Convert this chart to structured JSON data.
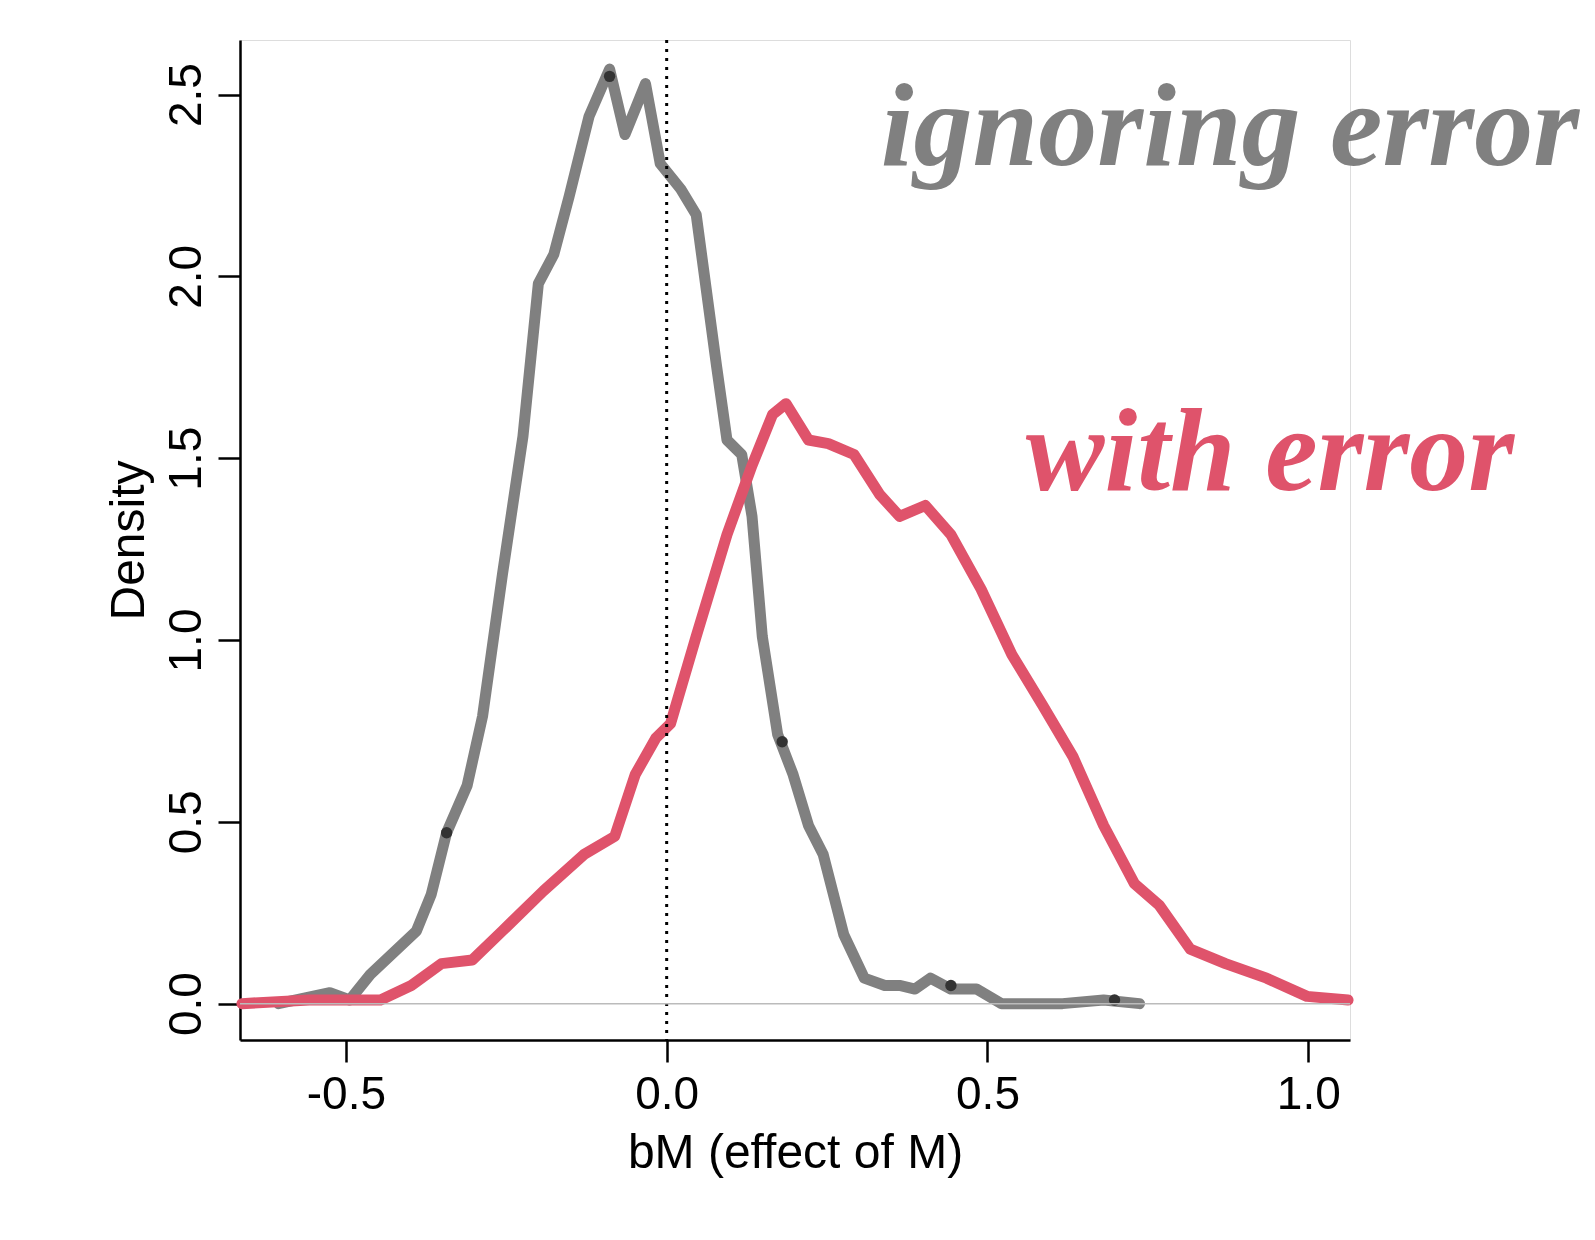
{
  "chart_data": {
    "type": "line",
    "xlabel": "bM (effect of M)",
    "ylabel": "Density",
    "xlim": [
      -0.665,
      1.065
    ],
    "ylim": [
      -0.1,
      2.65
    ],
    "xticks": [
      {
        "value": -0.5,
        "label": "-0.5"
      },
      {
        "value": 0,
        "label": "0.0"
      },
      {
        "value": 0.5,
        "label": "0.5"
      },
      {
        "value": 1,
        "label": "1.0"
      }
    ],
    "yticks": [
      {
        "value": 0,
        "label": "0.0"
      },
      {
        "value": 0.5,
        "label": "0.5"
      },
      {
        "value": 1,
        "label": "1.0"
      },
      {
        "value": 1.5,
        "label": "1.5"
      },
      {
        "value": 2,
        "label": "2.0"
      },
      {
        "value": 2.5,
        "label": "2.5"
      }
    ],
    "grid": false,
    "line_style": "solid",
    "ref_lines": [
      {
        "axis": "x",
        "value": 0,
        "color": "#000000",
        "line_style": "dotted"
      },
      {
        "axis": "y",
        "value": 0,
        "color": "#bbbbbb",
        "line_style": "solid"
      }
    ],
    "series": [
      {
        "name": "ignoring error",
        "color": "#808080",
        "x": [
          -0.605,
          -0.525,
          -0.494,
          -0.462,
          -0.414,
          -0.39,
          -0.367,
          -0.343,
          -0.311,
          -0.287,
          -0.256,
          -0.224,
          -0.2,
          -0.176,
          -0.152,
          -0.121,
          -0.089,
          -0.065,
          -0.049,
          -0.033,
          -0.01,
          0.022,
          0.046,
          0.078,
          0.094,
          0.117,
          0.133,
          0.149,
          0.173,
          0.197,
          0.221,
          0.244,
          0.276,
          0.308,
          0.34,
          0.363,
          0.387,
          0.411,
          0.443,
          0.483,
          0.522,
          0.554,
          0.617,
          0.681,
          0.737
        ],
        "values": [
          0.0,
          0.03,
          0.01,
          0.08,
          0.16,
          0.2,
          0.3,
          0.47,
          0.6,
          0.79,
          1.18,
          1.56,
          1.98,
          2.06,
          2.22,
          2.44,
          2.57,
          2.39,
          2.46,
          2.53,
          2.31,
          2.24,
          2.17,
          1.75,
          1.55,
          1.51,
          1.34,
          1.01,
          0.74,
          0.63,
          0.49,
          0.41,
          0.19,
          0.07,
          0.05,
          0.05,
          0.04,
          0.07,
          0.04,
          0.04,
          0.0,
          0.0,
          0.0,
          0.01,
          0.0
        ]
      },
      {
        "name": "with error",
        "color": "#df536b",
        "x": [
          -0.662,
          -0.557,
          -0.494,
          -0.446,
          -0.398,
          -0.351,
          -0.303,
          -0.256,
          -0.192,
          -0.129,
          -0.081,
          -0.049,
          -0.017,
          0.006,
          0.046,
          0.094,
          0.133,
          0.165,
          0.186,
          0.221,
          0.252,
          0.292,
          0.332,
          0.363,
          0.403,
          0.443,
          0.49,
          0.538,
          0.586,
          0.633,
          0.681,
          0.729,
          0.768,
          0.816,
          0.871,
          0.935,
          0.998,
          1.062
        ],
        "values": [
          0.0,
          0.01,
          0.01,
          0.01,
          0.05,
          0.11,
          0.12,
          0.2,
          0.31,
          0.41,
          0.46,
          0.63,
          0.73,
          0.77,
          1.01,
          1.29,
          1.48,
          1.62,
          1.65,
          1.55,
          1.54,
          1.51,
          1.4,
          1.34,
          1.37,
          1.29,
          1.14,
          0.96,
          0.82,
          0.68,
          0.49,
          0.33,
          0.27,
          0.15,
          0.11,
          0.07,
          0.02,
          0.01
        ]
      },
      {
        "color": "#333333",
        "type": "scatter",
        "marker": "circle",
        "x": [
          -0.343,
          -0.089,
          0.18,
          0.443,
          0.698
        ],
        "values": [
          0.47,
          2.55,
          0.72,
          0.05,
          0.01
        ]
      }
    ]
  }
}
